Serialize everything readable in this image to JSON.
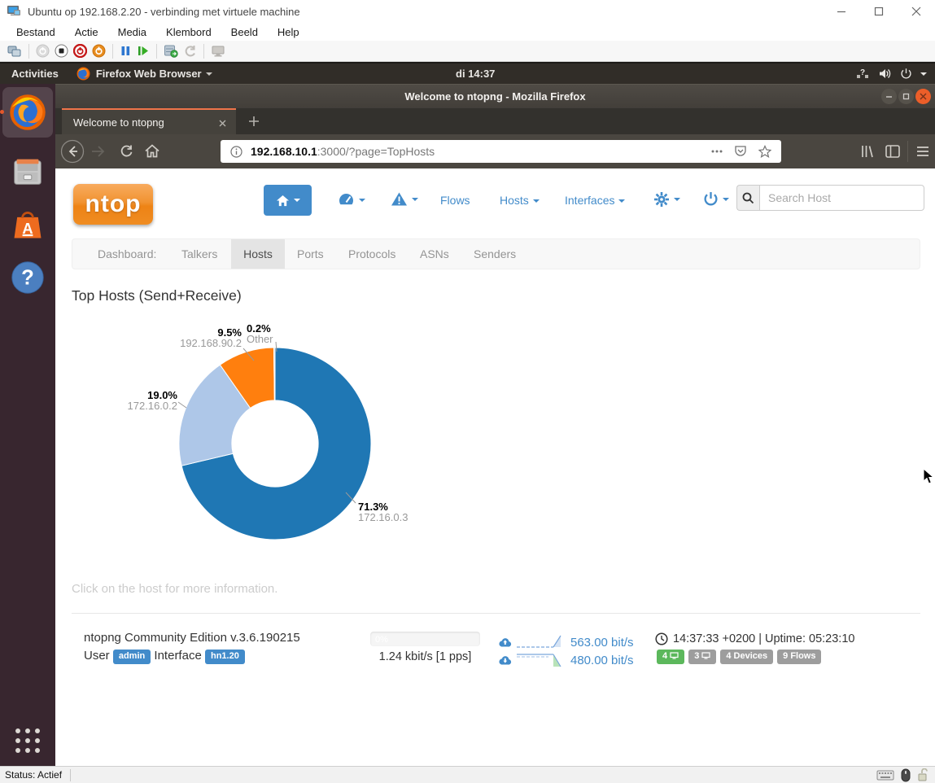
{
  "vm": {
    "title": "Ubuntu op 192.168.2.20 - verbinding met virtuele machine",
    "menu": [
      "Bestand",
      "Actie",
      "Media",
      "Klembord",
      "Beeld",
      "Help"
    ],
    "status": "Status: Actief"
  },
  "gnome": {
    "activities": "Activities",
    "app_menu": "Firefox Web Browser",
    "clock": "di 14:37"
  },
  "firefox": {
    "window_title": "Welcome to ntopng - Mozilla Firefox",
    "tab_title": "Welcome to ntopng",
    "url_host": "192.168.10.1",
    "url_rest": ":3000/?page=TopHosts"
  },
  "ntopng": {
    "logo_text": "ntop",
    "nav": {
      "flows": "Flows",
      "hosts": "Hosts",
      "interfaces": "Interfaces"
    },
    "search_placeholder": "Search Host",
    "subnav": [
      "Dashboard:",
      "Talkers",
      "Hosts",
      "Ports",
      "Protocols",
      "ASNs",
      "Senders"
    ],
    "active_subnav": "Hosts",
    "page_title": "Top Hosts (Send+Receive)",
    "hint": "Click on the host for more information.",
    "footer": {
      "edition": "ntopng Community Edition v.3.6.190215",
      "user_label": "User",
      "user_badge": "admin",
      "interface_label": "Interface",
      "interface_badge": "hn1.20",
      "progress_text": "0%",
      "throughput": "1.24 kbit/s [1 pps]",
      "upload_rate": "563.00 bit/s",
      "download_rate": "480.00 bit/s",
      "time_uptime": "14:37:33 +0200 | Uptime: 05:23:10",
      "badge_hosts_active": "4",
      "badge_hosts_remote": "3",
      "badge_devices": "4 Devices",
      "badge_flows": "9 Flows"
    }
  },
  "colors": {
    "accent_blue": "#428bca",
    "ubuntu_orange": "#e95420",
    "badge_green": "#5cb85c",
    "badge_gray": "#9d9d9d"
  },
  "chart_data": {
    "type": "pie",
    "subtype": "donut",
    "title": "Top Hosts (Send+Receive)",
    "labels": [
      "172.16.0.3",
      "172.16.0.2",
      "192.168.90.2",
      "Other"
    ],
    "values": [
      71.3,
      19.0,
      9.5,
      0.2
    ],
    "pct_labels": [
      "71.3%",
      "19.0%",
      "9.5%",
      "0.2%"
    ],
    "colors": [
      "#1f77b4",
      "#aec7e8",
      "#ff7f0e",
      "#c7c7c7"
    ],
    "start_angle_deg": 0,
    "direction": "clockwise",
    "inner_radius_ratio": 0.45,
    "legend": "none"
  }
}
